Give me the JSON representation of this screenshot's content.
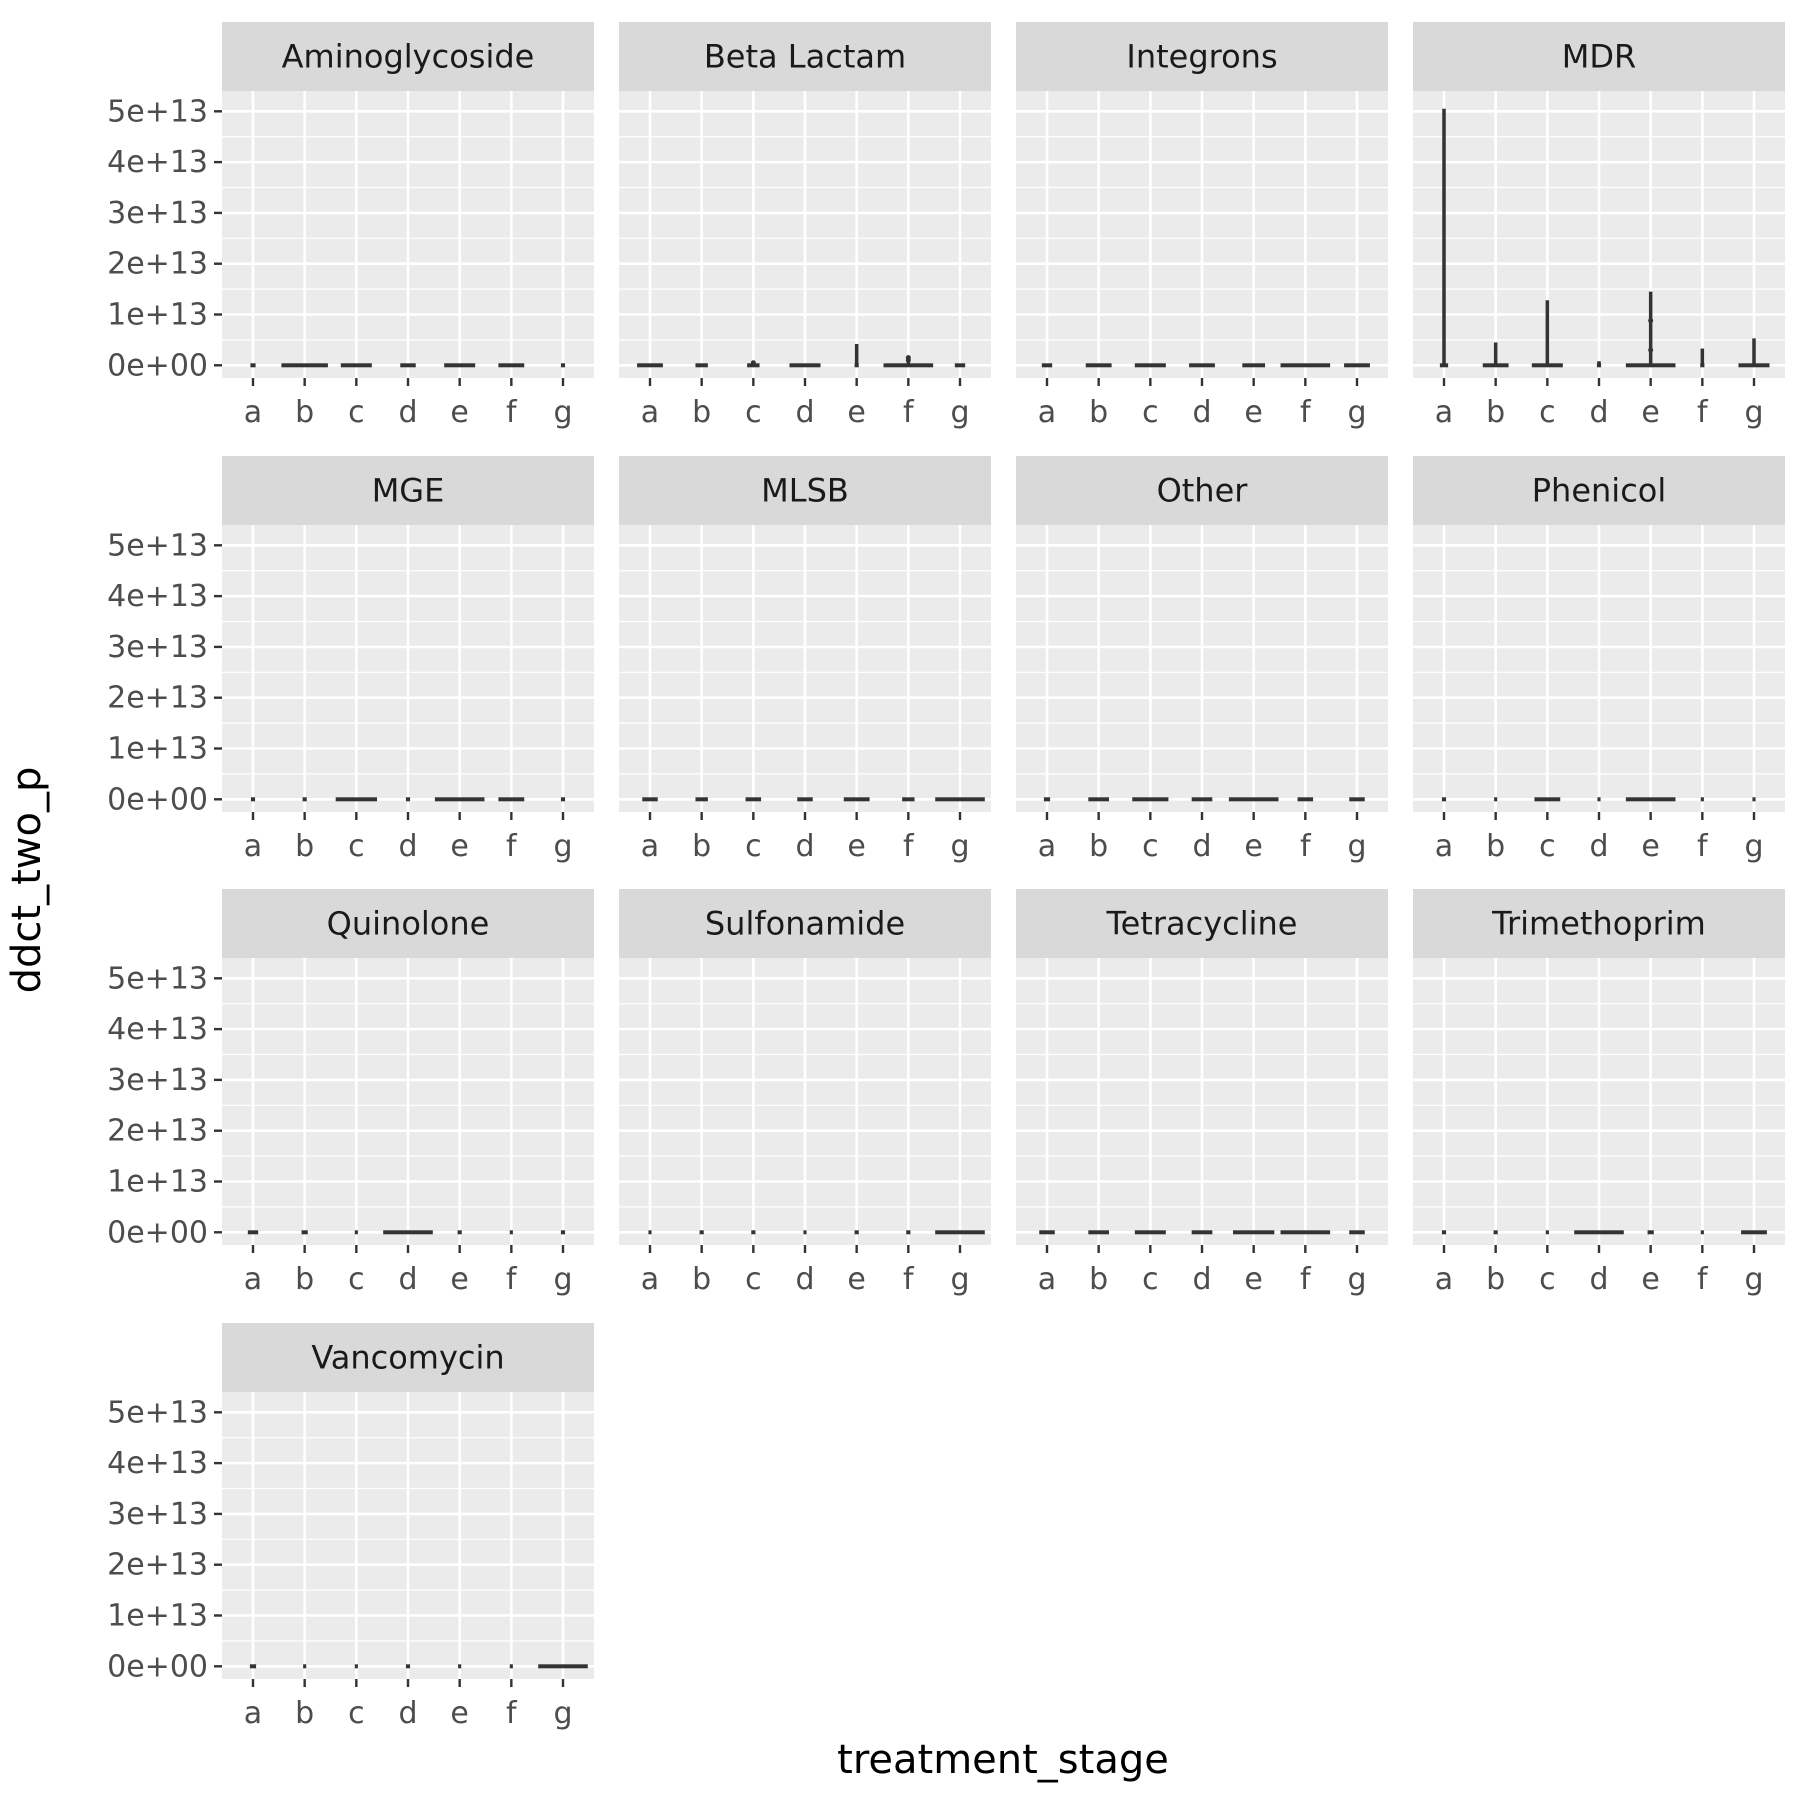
{
  "chart_data": {
    "type": "boxplot",
    "xlabel": "treatment_stage",
    "ylabel": "ddct_two_p",
    "categories": [
      "a",
      "b",
      "c",
      "d",
      "e",
      "f",
      "g"
    ],
    "ylim": [
      -2500000000000.0,
      54000000000000.0
    ],
    "yticks": [
      0,
      10000000000000.0,
      20000000000000.0,
      30000000000000.0,
      40000000000000.0,
      50000000000000.0
    ],
    "ytick_labels": [
      "0e+00",
      "1e+13",
      "2e+13",
      "3e+13",
      "4e+13",
      "5e+13"
    ],
    "facets": [
      {
        "name": "Aminoglycoside",
        "boxes": [
          {
            "x": "a",
            "box_halfwidth": 0.05,
            "whisker_max": 0,
            "outliers": []
          },
          {
            "x": "b",
            "box_halfwidth": 0.45,
            "whisker_max": 0,
            "outliers": []
          },
          {
            "x": "c",
            "box_halfwidth": 0.3,
            "whisker_max": 0,
            "outliers": []
          },
          {
            "x": "d",
            "box_halfwidth": 0.15,
            "whisker_max": 0,
            "outliers": []
          },
          {
            "x": "e",
            "box_halfwidth": 0.3,
            "whisker_max": 0,
            "outliers": []
          },
          {
            "x": "f",
            "box_halfwidth": 0.25,
            "whisker_max": 0,
            "outliers": []
          },
          {
            "x": "g",
            "box_halfwidth": 0.04,
            "whisker_max": 0,
            "outliers": []
          }
        ]
      },
      {
        "name": "Beta Lactam",
        "boxes": [
          {
            "x": "a",
            "box_halfwidth": 0.25,
            "whisker_max": 100000000000.0,
            "outliers": []
          },
          {
            "x": "b",
            "box_halfwidth": 0.12,
            "whisker_max": 0,
            "outliers": []
          },
          {
            "x": "c",
            "box_halfwidth": 0.12,
            "whisker_max": 0,
            "outliers": [
              500000000000.0
            ]
          },
          {
            "x": "d",
            "box_halfwidth": 0.3,
            "whisker_max": 100000000000.0,
            "outliers": []
          },
          {
            "x": "e",
            "box_halfwidth": 0.04,
            "whisker_max": 4200000000000.0,
            "outliers": []
          },
          {
            "x": "f",
            "box_halfwidth": 0.48,
            "whisker_max": 1800000000000.0,
            "outliers": [
              1500000000000.0,
              1000000000000.0
            ]
          },
          {
            "x": "g",
            "box_halfwidth": 0.1,
            "whisker_max": 0,
            "outliers": []
          }
        ]
      },
      {
        "name": "Integrons",
        "boxes": [
          {
            "x": "a",
            "box_halfwidth": 0.1,
            "whisker_max": 0,
            "outliers": []
          },
          {
            "x": "b",
            "box_halfwidth": 0.25,
            "whisker_max": 0,
            "outliers": []
          },
          {
            "x": "c",
            "box_halfwidth": 0.3,
            "whisker_max": 0,
            "outliers": []
          },
          {
            "x": "d",
            "box_halfwidth": 0.25,
            "whisker_max": 0,
            "outliers": []
          },
          {
            "x": "e",
            "box_halfwidth": 0.22,
            "whisker_max": 0,
            "outliers": []
          },
          {
            "x": "f",
            "box_halfwidth": 0.48,
            "whisker_max": 0,
            "outliers": []
          },
          {
            "x": "g",
            "box_halfwidth": 0.25,
            "whisker_max": 0,
            "outliers": []
          }
        ]
      },
      {
        "name": "MDR",
        "boxes": [
          {
            "x": "a",
            "box_halfwidth": 0.08,
            "whisker_max": 50500000000000.0,
            "outliers": []
          },
          {
            "x": "b",
            "box_halfwidth": 0.25,
            "whisker_max": 4500000000000.0,
            "outliers": []
          },
          {
            "x": "c",
            "box_halfwidth": 0.3,
            "whisker_max": 12800000000000.0,
            "outliers": []
          },
          {
            "x": "d",
            "box_halfwidth": 0.04,
            "whisker_max": 800000000000.0,
            "outliers": []
          },
          {
            "x": "e",
            "box_halfwidth": 0.48,
            "whisker_max": 14500000000000.0,
            "outliers": [
              8800000000000.0,
              3000000000000.0
            ]
          },
          {
            "x": "f",
            "box_halfwidth": 0.04,
            "whisker_max": 3300000000000.0,
            "outliers": []
          },
          {
            "x": "g",
            "box_halfwidth": 0.3,
            "whisker_max": 5300000000000.0,
            "outliers": []
          }
        ]
      },
      {
        "name": "MGE",
        "boxes": [
          {
            "x": "a",
            "box_halfwidth": 0.04,
            "whisker_max": 0,
            "outliers": []
          },
          {
            "x": "b",
            "box_halfwidth": 0.04,
            "whisker_max": 0,
            "outliers": []
          },
          {
            "x": "c",
            "box_halfwidth": 0.4,
            "whisker_max": 0,
            "outliers": []
          },
          {
            "x": "d",
            "box_halfwidth": 0.04,
            "whisker_max": 0,
            "outliers": []
          },
          {
            "x": "e",
            "box_halfwidth": 0.48,
            "whisker_max": 0,
            "outliers": []
          },
          {
            "x": "f",
            "box_halfwidth": 0.25,
            "whisker_max": 0,
            "outliers": []
          },
          {
            "x": "g",
            "box_halfwidth": 0.04,
            "whisker_max": 0,
            "outliers": []
          }
        ]
      },
      {
        "name": "MLSB",
        "boxes": [
          {
            "x": "a",
            "box_halfwidth": 0.15,
            "whisker_max": 0,
            "outliers": []
          },
          {
            "x": "b",
            "box_halfwidth": 0.12,
            "whisker_max": 0,
            "outliers": []
          },
          {
            "x": "c",
            "box_halfwidth": 0.15,
            "whisker_max": 0,
            "outliers": []
          },
          {
            "x": "d",
            "box_halfwidth": 0.15,
            "whisker_max": 0,
            "outliers": []
          },
          {
            "x": "e",
            "box_halfwidth": 0.25,
            "whisker_max": 0,
            "outliers": []
          },
          {
            "x": "f",
            "box_halfwidth": 0.12,
            "whisker_max": 0,
            "outliers": []
          },
          {
            "x": "g",
            "box_halfwidth": 0.48,
            "whisker_max": 0,
            "outliers": []
          }
        ]
      },
      {
        "name": "Other",
        "boxes": [
          {
            "x": "a",
            "box_halfwidth": 0.06,
            "whisker_max": 0,
            "outliers": []
          },
          {
            "x": "b",
            "box_halfwidth": 0.2,
            "whisker_max": 0,
            "outliers": []
          },
          {
            "x": "c",
            "box_halfwidth": 0.35,
            "whisker_max": 0,
            "outliers": []
          },
          {
            "x": "d",
            "box_halfwidth": 0.2,
            "whisker_max": 0,
            "outliers": []
          },
          {
            "x": "e",
            "box_halfwidth": 0.48,
            "whisker_max": 0,
            "outliers": []
          },
          {
            "x": "f",
            "box_halfwidth": 0.15,
            "whisker_max": 100000000000.0,
            "outliers": []
          },
          {
            "x": "g",
            "box_halfwidth": 0.15,
            "whisker_max": 0,
            "outliers": []
          }
        ]
      },
      {
        "name": "Phenicol",
        "boxes": [
          {
            "x": "a",
            "box_halfwidth": 0.04,
            "whisker_max": 0,
            "outliers": []
          },
          {
            "x": "b",
            "box_halfwidth": 0.03,
            "whisker_max": 0,
            "outliers": []
          },
          {
            "x": "c",
            "box_halfwidth": 0.25,
            "whisker_max": 0,
            "outliers": []
          },
          {
            "x": "d",
            "box_halfwidth": 0.03,
            "whisker_max": 0,
            "outliers": []
          },
          {
            "x": "e",
            "box_halfwidth": 0.48,
            "whisker_max": 0,
            "outliers": []
          },
          {
            "x": "f",
            "box_halfwidth": 0.03,
            "whisker_max": 0,
            "outliers": []
          },
          {
            "x": "g",
            "box_halfwidth": 0.03,
            "whisker_max": 0,
            "outliers": []
          }
        ]
      },
      {
        "name": "Quinolone",
        "boxes": [
          {
            "x": "a",
            "box_halfwidth": 0.1,
            "whisker_max": 0,
            "outliers": []
          },
          {
            "x": "b",
            "box_halfwidth": 0.06,
            "whisker_max": 0,
            "outliers": []
          },
          {
            "x": "c",
            "box_halfwidth": 0.03,
            "whisker_max": 0,
            "outliers": []
          },
          {
            "x": "d",
            "box_halfwidth": 0.48,
            "whisker_max": 0,
            "outliers": []
          },
          {
            "x": "e",
            "box_halfwidth": 0.04,
            "whisker_max": 0,
            "outliers": []
          },
          {
            "x": "f",
            "box_halfwidth": 0.03,
            "whisker_max": 0,
            "outliers": []
          },
          {
            "x": "g",
            "box_halfwidth": 0.04,
            "whisker_max": 0,
            "outliers": []
          }
        ]
      },
      {
        "name": "Sulfonamide",
        "boxes": [
          {
            "x": "a",
            "box_halfwidth": 0.03,
            "whisker_max": 0,
            "outliers": []
          },
          {
            "x": "b",
            "box_halfwidth": 0.04,
            "whisker_max": 0,
            "outliers": []
          },
          {
            "x": "c",
            "box_halfwidth": 0.04,
            "whisker_max": 200000000000.0,
            "outliers": []
          },
          {
            "x": "d",
            "box_halfwidth": 0.03,
            "whisker_max": 0,
            "outliers": []
          },
          {
            "x": "e",
            "box_halfwidth": 0.04,
            "whisker_max": 0,
            "outliers": []
          },
          {
            "x": "f",
            "box_halfwidth": 0.04,
            "whisker_max": 0,
            "outliers": []
          },
          {
            "x": "g",
            "box_halfwidth": 0.48,
            "whisker_max": 0,
            "outliers": []
          }
        ]
      },
      {
        "name": "Tetracycline",
        "boxes": [
          {
            "x": "a",
            "box_halfwidth": 0.15,
            "whisker_max": 0,
            "outliers": []
          },
          {
            "x": "b",
            "box_halfwidth": 0.2,
            "whisker_max": 0,
            "outliers": []
          },
          {
            "x": "c",
            "box_halfwidth": 0.3,
            "whisker_max": 0,
            "outliers": []
          },
          {
            "x": "d",
            "box_halfwidth": 0.2,
            "whisker_max": 0,
            "outliers": []
          },
          {
            "x": "e",
            "box_halfwidth": 0.4,
            "whisker_max": 0,
            "outliers": []
          },
          {
            "x": "f",
            "box_halfwidth": 0.48,
            "whisker_max": 0,
            "outliers": []
          },
          {
            "x": "g",
            "box_halfwidth": 0.15,
            "whisker_max": 0,
            "outliers": []
          }
        ]
      },
      {
        "name": "Trimethoprim",
        "boxes": [
          {
            "x": "a",
            "box_halfwidth": 0.04,
            "whisker_max": 0,
            "outliers": []
          },
          {
            "x": "b",
            "box_halfwidth": 0.04,
            "whisker_max": 0,
            "outliers": []
          },
          {
            "x": "c",
            "box_halfwidth": 0.03,
            "whisker_max": 0,
            "outliers": []
          },
          {
            "x": "d",
            "box_halfwidth": 0.48,
            "whisker_max": 0,
            "outliers": []
          },
          {
            "x": "e",
            "box_halfwidth": 0.06,
            "whisker_max": 0,
            "outliers": []
          },
          {
            "x": "f",
            "box_halfwidth": 0.03,
            "whisker_max": 0,
            "outliers": []
          },
          {
            "x": "g",
            "box_halfwidth": 0.25,
            "whisker_max": 0,
            "outliers": []
          }
        ]
      },
      {
        "name": "Vancomycin",
        "boxes": [
          {
            "x": "a",
            "box_halfwidth": 0.06,
            "whisker_max": 0,
            "outliers": []
          },
          {
            "x": "b",
            "box_halfwidth": 0.03,
            "whisker_max": 0,
            "outliers": []
          },
          {
            "x": "c",
            "box_halfwidth": 0.03,
            "whisker_max": 0,
            "outliers": []
          },
          {
            "x": "d",
            "box_halfwidth": 0.04,
            "whisker_max": 0,
            "outliers": []
          },
          {
            "x": "e",
            "box_halfwidth": 0.03,
            "whisker_max": 0,
            "outliers": []
          },
          {
            "x": "f",
            "box_halfwidth": 0.03,
            "whisker_max": 0,
            "outliers": []
          },
          {
            "x": "g",
            "box_halfwidth": 0.48,
            "whisker_max": 0,
            "outliers": []
          }
        ]
      }
    ],
    "colors": {
      "panel_background": "#ebebeb",
      "grid": "#ffffff",
      "strip_background": "#d9d9d9",
      "box_line": "#333333"
    }
  }
}
